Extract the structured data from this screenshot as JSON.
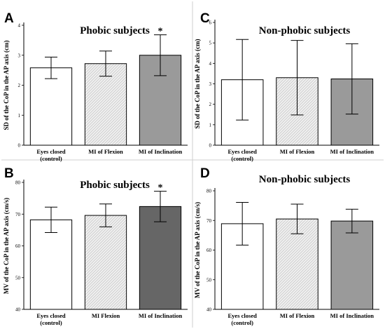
{
  "chart_data": [
    {
      "type": "bar",
      "panel": "A",
      "title": "Phobic subjects",
      "ylabel": "SD of the CoP in the AP axis (cm)",
      "ylim": [
        0,
        4
      ],
      "yticks": [
        "0",
        "1",
        "2",
        "3",
        "4"
      ],
      "categories": [
        "Eyes closed",
        "MI of Flexion",
        "MI of Inclination"
      ],
      "category_sublabels": [
        "(control)",
        "",
        ""
      ],
      "values": [
        2.58,
        2.72,
        3.0
      ],
      "errors": [
        0.36,
        0.42,
        0.68
      ],
      "significance": [
        "",
        "",
        "*"
      ],
      "fills": [
        "white",
        "hatch-light",
        "gray"
      ]
    },
    {
      "type": "bar",
      "panel": "C",
      "title": "Non-phobic subjects",
      "ylabel": "SD of the CoP in the AP axis (cm)",
      "ylim": [
        0,
        6
      ],
      "yticks": [
        "0",
        "1",
        "2",
        "3",
        "4",
        "5",
        "6"
      ],
      "categories": [
        "Eyes closed",
        "MI of Flexion",
        "MI of Inclination"
      ],
      "category_sublabels": [
        "(control)",
        "",
        ""
      ],
      "values": [
        3.2,
        3.3,
        3.24
      ],
      "errors": [
        1.97,
        1.82,
        1.72
      ],
      "significance": [
        "",
        "",
        ""
      ],
      "fills": [
        "white",
        "hatch-light",
        "gray"
      ]
    },
    {
      "type": "bar",
      "panel": "B",
      "title": "Phobic subjects",
      "ylabel": "MV of the CoP  in the AP axis (cm/s)",
      "ylim": [
        40,
        80
      ],
      "yticks": [
        "40",
        "50",
        "60",
        "70",
        "80"
      ],
      "categories": [
        "Eyes closed",
        "MI Flexion",
        "MI of Inclination"
      ],
      "category_sublabels": [
        "(control)",
        "",
        ""
      ],
      "values": [
        68.2,
        69.6,
        72.4
      ],
      "errors": [
        4.0,
        3.6,
        4.8
      ],
      "significance": [
        "",
        "",
        "*"
      ],
      "fills": [
        "white",
        "hatch-light",
        "dark-gray"
      ]
    },
    {
      "type": "bar",
      "panel": "D",
      "title": "Non-phobic subjects",
      "ylabel": "MV of the CoP in the AP axis (cm/s)",
      "ylim": [
        40,
        80
      ],
      "yticks": [
        "40",
        "50",
        "60",
        "70",
        "80"
      ],
      "categories": [
        "Eyes closed",
        "MI of Flexion",
        "MI of Inclination"
      ],
      "category_sublabels": [
        "(control)",
        "",
        ""
      ],
      "values": [
        68.9,
        70.5,
        69.8
      ],
      "errors": [
        7.2,
        5.0,
        4.0
      ],
      "significance": [
        "",
        "",
        ""
      ],
      "fills": [
        "white",
        "hatch-light",
        "gray"
      ]
    }
  ],
  "colors": {
    "gray": "#9a9a9a",
    "dark-gray": "#666666",
    "white": "#ffffff",
    "hatch-light": "#d8d8d8",
    "axis": "#000000",
    "divider": "#cfcfcf"
  }
}
